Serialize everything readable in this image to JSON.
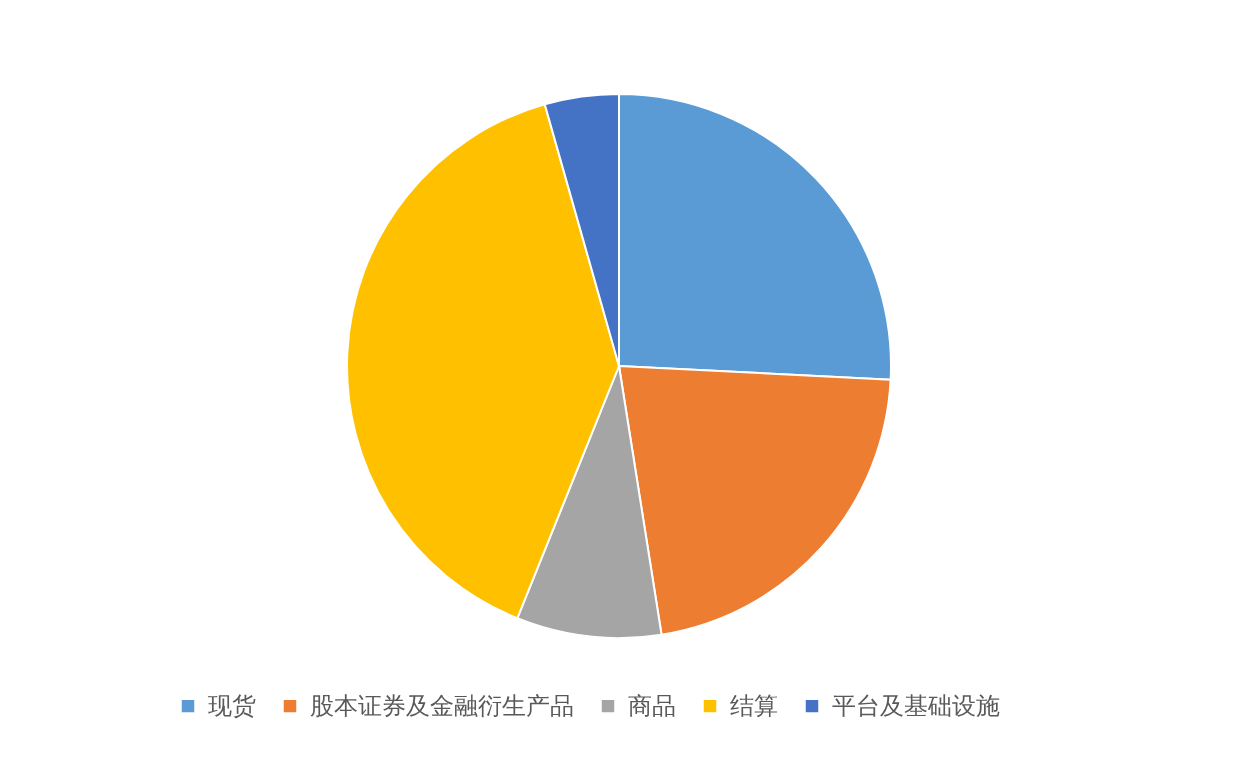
{
  "chart_data": {
    "type": "pie",
    "categories": [
      "现货",
      "股本证券及金融衍生产品",
      "商品",
      "结算",
      "平台及基础设施"
    ],
    "values": [
      25.8,
      21.7,
      8.6,
      39.5,
      4.4
    ],
    "colors": [
      "#5b9bd5",
      "#ed7d31",
      "#a5a5a5",
      "#ffc000",
      "#4472c4"
    ],
    "legend": "bottom"
  }
}
